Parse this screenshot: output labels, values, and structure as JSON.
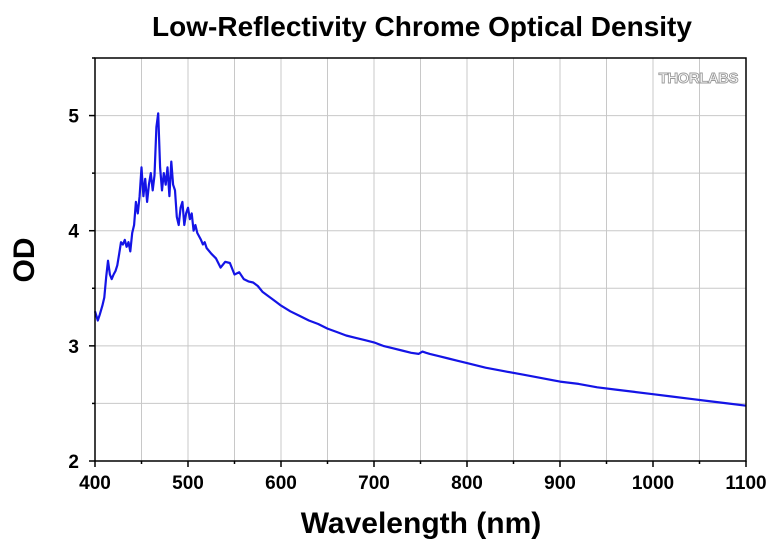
{
  "chart_data": {
    "type": "line",
    "title": "Low-Reflectivity Chrome Optical Density",
    "xlabel": "Wavelength (nm)",
    "ylabel": "OD",
    "xlim": [
      400,
      1100
    ],
    "ylim": [
      2,
      5.5
    ],
    "x_ticks": [
      400,
      500,
      600,
      700,
      800,
      900,
      1000,
      1100
    ],
    "y_ticks": [
      2,
      3,
      4,
      5
    ],
    "grid": true,
    "line_color": "#1414e6",
    "logo_text": "THORLABS",
    "series": [
      {
        "x": [
          400,
          403,
          405,
          408,
          410,
          412,
          414,
          416,
          418,
          420,
          422,
          424,
          426,
          428,
          430,
          432,
          434,
          436,
          438,
          440,
          442,
          444,
          446,
          448,
          450,
          452,
          454,
          456,
          458,
          460,
          462,
          464,
          466,
          468,
          470,
          472,
          474,
          476,
          478,
          480,
          482,
          484,
          486,
          488,
          490,
          492,
          494,
          496,
          498,
          500,
          502,
          504,
          506,
          508,
          510,
          512,
          514,
          516,
          518,
          520,
          525,
          530,
          535,
          540,
          545,
          550,
          555,
          560,
          565,
          570,
          575,
          580,
          585,
          590,
          595,
          600,
          610,
          620,
          630,
          640,
          650,
          660,
          670,
          680,
          690,
          700,
          710,
          720,
          730,
          740,
          748,
          752,
          756,
          760,
          770,
          780,
          790,
          800,
          820,
          840,
          860,
          880,
          900,
          920,
          940,
          960,
          980,
          1000,
          1020,
          1040,
          1060,
          1080,
          1100
        ],
        "y": [
          3.3,
          3.22,
          3.27,
          3.35,
          3.42,
          3.6,
          3.74,
          3.62,
          3.58,
          3.62,
          3.65,
          3.7,
          3.8,
          3.9,
          3.88,
          3.92,
          3.86,
          3.9,
          3.82,
          3.98,
          4.05,
          4.25,
          4.15,
          4.3,
          4.55,
          4.3,
          4.45,
          4.25,
          4.4,
          4.5,
          4.35,
          4.48,
          4.9,
          5.02,
          4.55,
          4.35,
          4.5,
          4.4,
          4.55,
          4.3,
          4.6,
          4.4,
          4.35,
          4.12,
          4.05,
          4.2,
          4.25,
          4.05,
          4.15,
          4.2,
          4.1,
          4.15,
          4.0,
          4.05,
          3.98,
          3.95,
          3.92,
          3.88,
          3.9,
          3.85,
          3.8,
          3.76,
          3.68,
          3.73,
          3.72,
          3.62,
          3.64,
          3.58,
          3.56,
          3.55,
          3.52,
          3.47,
          3.44,
          3.41,
          3.38,
          3.35,
          3.3,
          3.26,
          3.22,
          3.19,
          3.15,
          3.12,
          3.09,
          3.07,
          3.05,
          3.03,
          3.0,
          2.98,
          2.96,
          2.94,
          2.93,
          2.95,
          2.94,
          2.93,
          2.91,
          2.89,
          2.87,
          2.85,
          2.81,
          2.78,
          2.75,
          2.72,
          2.69,
          2.67,
          2.64,
          2.62,
          2.6,
          2.58,
          2.56,
          2.54,
          2.52,
          2.5,
          2.48
        ]
      }
    ]
  }
}
